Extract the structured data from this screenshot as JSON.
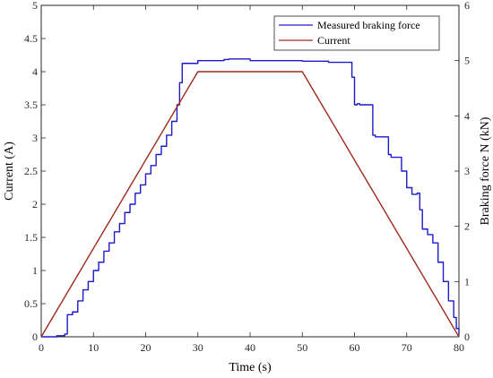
{
  "chart_data": {
    "type": "line",
    "xlabel": "Time (s)",
    "ylabel_left": "Current (A)",
    "ylabel_right": "Braking force N (kN)",
    "xlim": [
      0,
      80
    ],
    "ylim_left": [
      0,
      5
    ],
    "ylim_right": [
      0,
      6
    ],
    "x_ticks": [
      "0",
      "10",
      "20",
      "30",
      "40",
      "50",
      "60",
      "70",
      "80"
    ],
    "y_ticks_left": [
      "0",
      "0.5",
      "1",
      "1.5",
      "2",
      "2.5",
      "3",
      "3.5",
      "4",
      "4.5",
      "5"
    ],
    "y_ticks_right": [
      "0",
      "1",
      "2",
      "3",
      "4",
      "5",
      "6"
    ],
    "grid": false,
    "legend_position": "top-right",
    "series": [
      {
        "name": "Measured braking force",
        "axis": "right",
        "color": "#1a1acc",
        "x": [
          0,
          3,
          4.5,
          5,
          6,
          7,
          8,
          9,
          10,
          11,
          12,
          13,
          14,
          15,
          16,
          17,
          18,
          19,
          20,
          21,
          22,
          23,
          24,
          25,
          26,
          26.5,
          27,
          30,
          35,
          36,
          40,
          45,
          50,
          55,
          59,
          59.5,
          60,
          60.5,
          61,
          63,
          63.5,
          64,
          66,
          66.5,
          67,
          69,
          70,
          71,
          72,
          72.5,
          73,
          74,
          75,
          76,
          77,
          78,
          79,
          79.5,
          80
        ],
        "y": [
          0,
          0.02,
          0.05,
          0.4,
          0.45,
          0.65,
          0.85,
          1.0,
          1.2,
          1.35,
          1.55,
          1.7,
          1.9,
          2.05,
          2.25,
          2.4,
          2.6,
          2.75,
          2.95,
          3.1,
          3.3,
          3.45,
          3.65,
          3.9,
          4.2,
          4.6,
          4.95,
          5.0,
          5.02,
          5.03,
          5.0,
          5.0,
          4.99,
          4.97,
          4.97,
          4.7,
          4.2,
          4.22,
          4.2,
          4.2,
          3.65,
          3.62,
          3.62,
          3.3,
          3.25,
          3.0,
          2.7,
          2.58,
          2.6,
          2.3,
          1.95,
          1.85,
          1.7,
          1.35,
          1.0,
          0.65,
          0.35,
          0.15,
          0.05
        ]
      },
      {
        "name": "Current",
        "axis": "left",
        "color": "#a0291c",
        "x": [
          0,
          30,
          50,
          80
        ],
        "y": [
          0,
          4.0,
          4.0,
          0
        ]
      }
    ]
  }
}
